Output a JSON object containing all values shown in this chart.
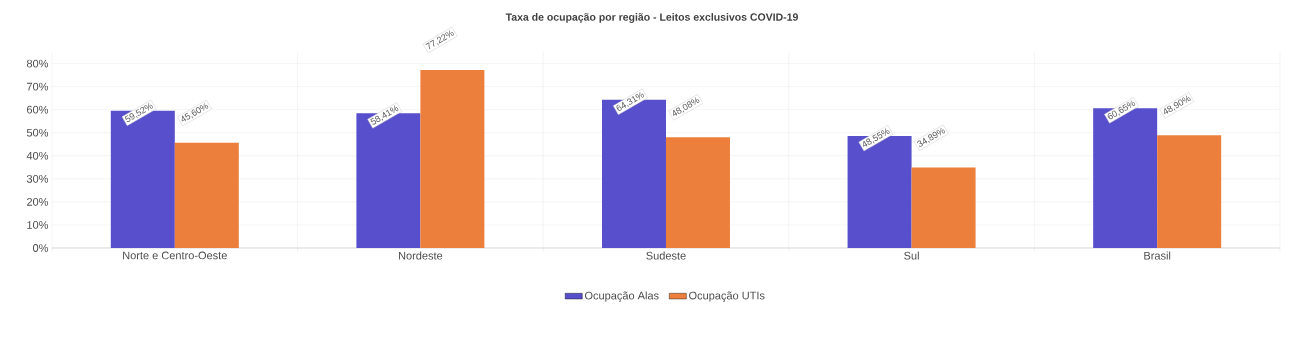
{
  "chart_data": {
    "type": "bar",
    "title": "Taxa de ocupação por região - Leitos exclusivos COVID-19",
    "categories": [
      "Norte e Centro-Oeste",
      "Nordeste",
      "Sudeste",
      "Sul",
      "Brasil"
    ],
    "series": [
      {
        "name": "Ocupação Alas",
        "color": "#574fcb",
        "values": [
          59.52,
          58.41,
          64.31,
          48.55,
          60.65
        ],
        "value_labels": [
          "59,52%",
          "58,41%",
          "64,31%",
          "48,55%",
          "60,65%"
        ]
      },
      {
        "name": "Ocupação UTIs",
        "color": "#ed7f3d",
        "values": [
          45.6,
          77.22,
          48.08,
          34.89,
          48.9
        ],
        "value_labels": [
          "45,60%",
          "77,22%",
          "48,08%",
          "34,89%",
          "48,90%"
        ]
      }
    ],
    "ylim": [
      0,
      85
    ],
    "yticks": [
      {
        "value": 0,
        "label": "0%"
      },
      {
        "value": 10,
        "label": "10%"
      },
      {
        "value": 20,
        "label": "20%"
      },
      {
        "value": 30,
        "label": "30%"
      },
      {
        "value": 40,
        "label": "40%"
      },
      {
        "value": 50,
        "label": "50%"
      },
      {
        "value": 60,
        "label": "60%"
      },
      {
        "value": 70,
        "label": "70%"
      },
      {
        "value": 80,
        "label": "80%"
      }
    ],
    "grid": true,
    "legend": "bottom"
  }
}
